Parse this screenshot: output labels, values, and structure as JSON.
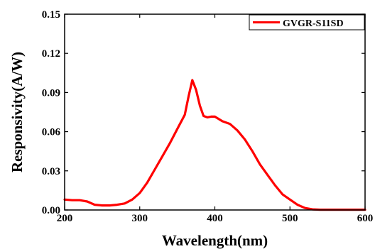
{
  "chart_data": {
    "type": "line",
    "title": "",
    "xlabel": "Wavelength(nm)",
    "ylabel": "Responsivity(A/W)",
    "xlim": [
      200,
      600
    ],
    "ylim": [
      0,
      0.15
    ],
    "xticks": [
      200,
      300,
      400,
      500,
      600
    ],
    "xtick_labels": [
      "200",
      "300",
      "400",
      "500",
      "600"
    ],
    "yticks": [
      0,
      0.03,
      0.06,
      0.09,
      0.12,
      0.15
    ],
    "ytick_labels": [
      "0.00",
      "0.03",
      "0.06",
      "0.09",
      "0.12",
      "0.15"
    ],
    "grid": false,
    "legend_position": "top-right",
    "series": [
      {
        "name": "GVGR-S11SD",
        "color": "#ff0000",
        "x": [
          200,
          210,
          220,
          230,
          240,
          250,
          260,
          270,
          280,
          290,
          300,
          310,
          320,
          330,
          340,
          350,
          360,
          365,
          370,
          375,
          380,
          385,
          390,
          395,
          400,
          410,
          420,
          430,
          440,
          450,
          460,
          470,
          480,
          490,
          500,
          510,
          520,
          530,
          540,
          560,
          580,
          600
        ],
        "y": [
          0.008,
          0.0075,
          0.0075,
          0.0065,
          0.004,
          0.0035,
          0.0035,
          0.004,
          0.005,
          0.008,
          0.013,
          0.021,
          0.031,
          0.041,
          0.051,
          0.062,
          0.073,
          0.087,
          0.0995,
          0.092,
          0.08,
          0.072,
          0.071,
          0.0715,
          0.0715,
          0.068,
          0.066,
          0.061,
          0.054,
          0.045,
          0.035,
          0.027,
          0.019,
          0.012,
          0.008,
          0.004,
          0.0015,
          0.0005,
          0.0002,
          0.0002,
          0.0002,
          0.0002
        ]
      }
    ]
  }
}
